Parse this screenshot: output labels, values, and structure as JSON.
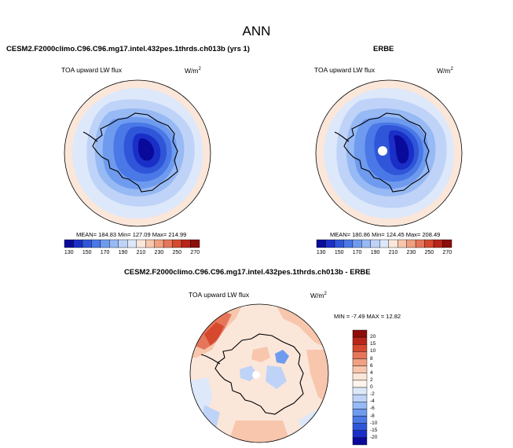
{
  "page_title": "ANN",
  "panels": {
    "model": {
      "title": "CESM2.F2000climo.C96.C96.mg17.intel.432pes.1thrds.ch013b (yrs 1)",
      "variable": "TOA upward LW flux",
      "units_base": "W/m",
      "units_exp": "2",
      "stats": "MEAN= 184.83  Min= 127.09  Max= 214.99"
    },
    "obs": {
      "title": "ERBE",
      "variable": "TOA upward LW flux",
      "units_base": "W/m",
      "units_exp": "2",
      "stats": "MEAN= 180.86  Min= 124.45  Max= 208.49"
    },
    "diff": {
      "title": "CESM2.F2000climo.C96.C96.mg17.intel.432pes.1thrds.ch013b - ERBE",
      "variable": "TOA upward LW flux",
      "units_base": "W/m",
      "units_exp": "2",
      "stats": "MIN = -7.49 MAX = 12.82"
    }
  },
  "colorbar_main": {
    "labels": [
      "130",
      "150",
      "170",
      "190",
      "210",
      "230",
      "250",
      "270"
    ],
    "colors": [
      "#0a0a9a",
      "#1a2fc7",
      "#2f55d8",
      "#4a78e6",
      "#6f9bef",
      "#97b9f4",
      "#bed3f7",
      "#dde8fa",
      "#fbe6da",
      "#f7c6ad",
      "#f0a080",
      "#e6765a",
      "#d6492f",
      "#b8251a",
      "#8c0d0a"
    ]
  },
  "colorbar_diff": {
    "labels": [
      "20",
      "15",
      "10",
      "8",
      "6",
      "4",
      "2",
      "0",
      "-2",
      "-4",
      "-6",
      "-8",
      "-10",
      "-15",
      "-20"
    ],
    "colors": [
      "#8c0d0a",
      "#b8251a",
      "#d6492f",
      "#e6765a",
      "#f0a080",
      "#f7c6ad",
      "#fbe6da",
      "#fdf4ec",
      "#dde8fa",
      "#bed3f7",
      "#97b9f4",
      "#6f9bef",
      "#4a78e6",
      "#2f55d8",
      "#1a2fc7",
      "#0a0a9a"
    ]
  },
  "map_colors": {
    "outer": "#fbe6da",
    "ring": "#dde8fa",
    "shelf": "#bed3f7",
    "l1": "#97b9f4",
    "l2": "#6f9bef",
    "l3": "#4a78e6",
    "l4": "#2f55d8",
    "l5": "#1a2fc7",
    "l6": "#0a0a9a",
    "diff_base": "#fbe6da",
    "diff_warm": "#f0a080",
    "diff_hot": "#e6765a",
    "diff_cool": "#bed3f7",
    "diff_cold": "#6f9bef"
  }
}
